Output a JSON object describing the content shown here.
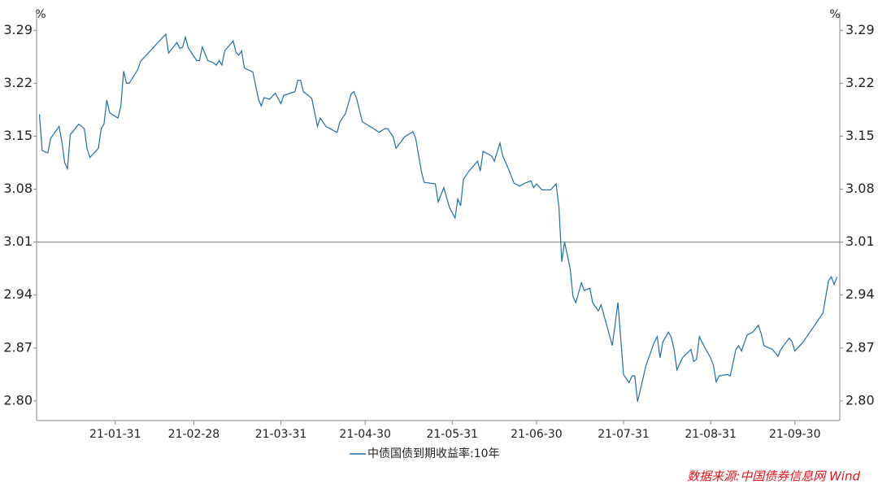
{
  "chart_data": {
    "type": "line",
    "y_unit": "%",
    "source": "数据来源:中国债券信息网 Wind",
    "xlim": [
      "21-01-03",
      "21-10-16"
    ],
    "xticks": [
      "21-01-31",
      "21-02-28",
      "21-03-31",
      "21-04-30",
      "21-05-31",
      "21-06-30",
      "21-07-31",
      "21-08-31",
      "21-09-30"
    ],
    "ylim": [
      2.774,
      3.314
    ],
    "yticks": [
      {
        "value": 2.8,
        "label": "2.80"
      },
      2.87,
      2.94,
      3.01,
      3.08,
      3.15,
      3.22,
      3.29
    ],
    "reference_line": 3.01,
    "legend": "bottom",
    "x": [
      "21-01-04",
      "21-01-05",
      "21-01-07",
      "21-01-08",
      "21-01-11",
      "21-01-12",
      "21-01-13",
      "21-01-14",
      "21-01-15",
      "21-01-18",
      "21-01-20",
      "21-01-21",
      "21-01-22",
      "21-01-25",
      "21-01-26",
      "21-01-27",
      "21-01-28",
      "21-01-29",
      "21-02-01",
      "21-02-02",
      "21-02-03",
      "21-02-04",
      "21-02-05",
      "21-02-08",
      "21-02-09",
      "21-02-18",
      "21-02-19",
      "21-02-22",
      "21-02-23",
      "21-02-24",
      "21-02-25",
      "21-02-26",
      "21-03-01",
      "21-03-02",
      "21-03-03",
      "21-03-05",
      "21-03-07",
      "21-03-08",
      "21-03-09",
      "21-03-10",
      "21-03-11",
      "21-03-14",
      "21-03-15",
      "21-03-16",
      "21-03-17",
      "21-03-18",
      "21-03-21",
      "21-03-23",
      "21-03-24",
      "21-03-25",
      "21-03-27",
      "21-03-29",
      "21-03-31",
      "21-04-01",
      "21-04-05",
      "21-04-06",
      "21-04-07",
      "21-04-08",
      "21-04-11",
      "21-04-13",
      "21-04-14",
      "21-04-16",
      "21-04-20",
      "21-04-21",
      "21-04-23",
      "21-04-25",
      "21-04-26",
      "21-04-27",
      "21-04-29",
      "21-05-03",
      "21-05-05",
      "21-05-07",
      "21-05-08",
      "21-05-10",
      "21-05-11",
      "21-05-14",
      "21-05-17",
      "21-05-18",
      "21-05-20",
      "21-05-21",
      "21-05-25",
      "21-05-26",
      "21-05-28",
      "21-05-30",
      "21-06-01",
      "21-06-02",
      "21-06-03",
      "21-06-04",
      "21-06-06",
      "21-06-09",
      "21-06-10",
      "21-06-11",
      "21-06-14",
      "21-06-15",
      "21-06-17",
      "21-06-18",
      "21-06-20",
      "21-06-22",
      "21-06-24",
      "21-06-26",
      "21-06-28",
      "21-06-29",
      "21-06-30",
      "21-07-02",
      "21-07-05",
      "21-07-07",
      "21-07-08",
      "21-07-09",
      "21-07-10",
      "21-07-12",
      "21-07-13",
      "21-07-14",
      "21-07-16",
      "21-07-17",
      "21-07-19",
      "21-07-20",
      "21-07-22",
      "21-07-23",
      "21-07-27",
      "21-07-29",
      "21-07-31",
      "21-08-02",
      "21-08-03",
      "21-08-04",
      "21-08-05",
      "21-08-08",
      "21-08-11",
      "21-08-12",
      "21-08-13",
      "21-08-14",
      "21-08-16",
      "21-08-17",
      "21-08-18",
      "21-08-19",
      "21-08-21",
      "21-08-24",
      "21-08-25",
      "21-08-26",
      "21-08-27",
      "21-08-29",
      "21-08-31",
      "21-09-01",
      "21-09-02",
      "21-09-03",
      "21-09-06",
      "21-09-07",
      "21-09-09",
      "21-09-10",
      "21-09-11",
      "21-09-13",
      "21-09-15",
      "21-09-17",
      "21-09-18",
      "21-09-19",
      "21-09-22",
      "21-09-24",
      "21-09-25",
      "21-09-27",
      "21-09-28",
      "21-09-29",
      "21-09-30",
      "21-10-03",
      "21-10-05",
      "21-10-10",
      "21-10-12",
      "21-10-13",
      "21-10-14",
      "21-10-15"
    ],
    "series": [
      {
        "name": "中债国债到期收益率:10年",
        "color": "#1f6fa5",
        "values": [
          3.179,
          3.131,
          3.128,
          3.147,
          3.163,
          3.143,
          3.115,
          3.107,
          3.152,
          3.166,
          3.16,
          3.133,
          3.122,
          3.134,
          3.16,
          3.166,
          3.198,
          3.181,
          3.174,
          3.19,
          3.236,
          3.22,
          3.22,
          3.238,
          3.249,
          3.285,
          3.26,
          3.274,
          3.266,
          3.268,
          3.281,
          3.267,
          3.25,
          3.25,
          3.268,
          3.25,
          3.247,
          3.244,
          3.25,
          3.244,
          3.263,
          3.276,
          3.261,
          3.257,
          3.263,
          3.24,
          3.235,
          3.199,
          3.19,
          3.201,
          3.199,
          3.207,
          3.193,
          3.204,
          3.209,
          3.224,
          3.224,
          3.209,
          3.2,
          3.163,
          3.174,
          3.163,
          3.155,
          3.169,
          3.18,
          3.206,
          3.209,
          3.199,
          3.169,
          3.16,
          3.155,
          3.16,
          3.16,
          3.149,
          3.134,
          3.149,
          3.156,
          3.147,
          3.104,
          3.089,
          3.087,
          3.063,
          3.082,
          3.056,
          3.042,
          3.067,
          3.058,
          3.093,
          3.104,
          3.117,
          3.104,
          3.13,
          3.124,
          3.117,
          3.141,
          3.124,
          3.107,
          3.088,
          3.084,
          3.088,
          3.091,
          3.082,
          3.087,
          3.079,
          3.079,
          3.087,
          3.056,
          2.984,
          3.01,
          2.975,
          2.938,
          2.93,
          2.956,
          2.946,
          2.949,
          2.93,
          2.919,
          2.927,
          2.873,
          2.93,
          2.835,
          2.824,
          2.833,
          2.833,
          2.799,
          2.847,
          2.878,
          2.885,
          2.857,
          2.878,
          2.891,
          2.884,
          2.868,
          2.841,
          2.857,
          2.868,
          2.852,
          2.855,
          2.885,
          2.87,
          2.857,
          2.847,
          2.825,
          2.833,
          2.835,
          2.833,
          2.868,
          2.873,
          2.866,
          2.887,
          2.891,
          2.9,
          2.889,
          2.873,
          2.868,
          2.859,
          2.868,
          2.878,
          2.883,
          2.878,
          2.866,
          2.878,
          2.889,
          2.916,
          2.959,
          2.964,
          2.954,
          2.964
        ]
      }
    ]
  }
}
